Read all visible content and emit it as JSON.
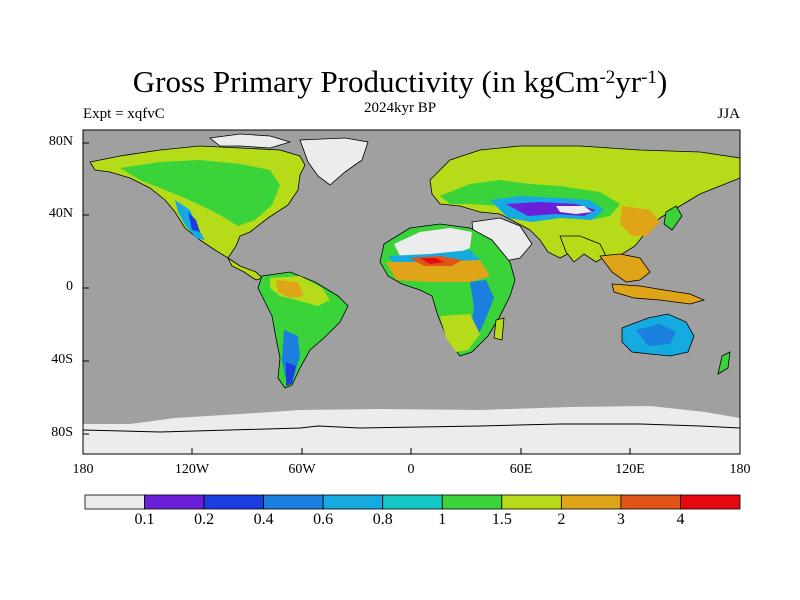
{
  "title": {
    "main": "Gross Primary Productivity (in kgCm",
    "sup1": "-2",
    "mid": "yr",
    "sup2": "-1",
    "end": ")"
  },
  "subtitle": "2024kyr BP",
  "experiment_label": "Expt = xqfvC",
  "season_label": "JJA",
  "colors": {
    "ocean": "#a0a0a0",
    "ice": "#ececec",
    "coast": "#000000"
  },
  "chart_data": {
    "type": "heatmap",
    "title": "Gross Primary Productivity (in kgCm-2yr-1)",
    "variable": "Gross Primary Productivity",
    "units": "kgCm-2yr-1",
    "period": "2024kyr BP",
    "experiment": "xqfvC",
    "season": "JJA",
    "lat_ticks": [
      "80N",
      "40N",
      "0",
      "40S",
      "80S"
    ],
    "lon_ticks": [
      "180",
      "120W",
      "60W",
      "0",
      "60E",
      "120E",
      "180"
    ],
    "lon_range": [
      -180,
      180
    ],
    "lat_range": [
      -90,
      90
    ],
    "colorbar": {
      "levels": [
        "0.1",
        "0.2",
        "0.4",
        "0.6",
        "0.8",
        "1",
        "1.5",
        "2",
        "3",
        "4"
      ],
      "colors": [
        "#ebebeb",
        "#6b1fd9",
        "#1a3ee0",
        "#1b7fe0",
        "#15aae0",
        "#14c8c8",
        "#3ad33a",
        "#b6dc19",
        "#e0a419",
        "#e05417",
        "#e60a10"
      ]
    }
  }
}
